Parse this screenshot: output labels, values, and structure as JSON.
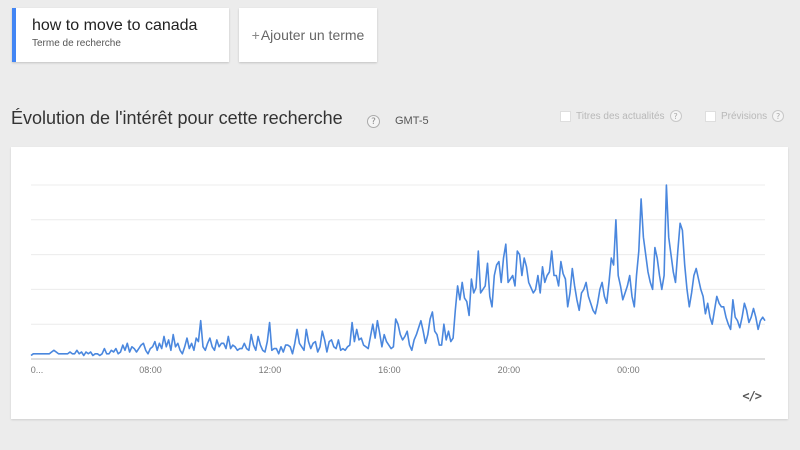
{
  "search_term": {
    "title": "how to move to canada",
    "subtitle": "Terme de recherche",
    "accent": "#4285f4"
  },
  "add_term": {
    "plus": "+",
    "label": "Ajouter un terme"
  },
  "section": {
    "title": "Évolution de l'intérêt pour cette recherche",
    "help": "?",
    "timezone": "GMT-5"
  },
  "options": {
    "news": {
      "label": "Titres des actualités",
      "help": "?"
    },
    "forecast": {
      "label": "Prévisions",
      "help": "?"
    }
  },
  "embed_label": "</>",
  "chart_data": {
    "type": "line",
    "xlabels": [
      {
        "label": "0...",
        "index": 0
      },
      {
        "label": "08:00",
        "index": 32
      },
      {
        "label": "12:00",
        "index": 64
      },
      {
        "label": "16:00",
        "index": 96
      },
      {
        "label": "20:00",
        "index": 128
      },
      {
        "label": "00:00",
        "index": 160
      }
    ],
    "ylim": [
      0,
      100
    ],
    "grid": true,
    "series": [
      {
        "color": "#4a87de",
        "values": [
          2,
          3,
          3,
          3,
          3,
          3,
          3,
          3,
          3,
          4,
          5,
          4,
          3,
          3,
          3,
          3,
          3,
          4,
          3,
          3,
          5,
          3,
          4,
          2,
          4,
          3,
          4,
          2,
          3,
          3,
          2,
          3,
          6,
          3,
          3,
          5,
          4,
          6,
          3,
          4,
          8,
          5,
          9,
          4,
          7,
          6,
          4,
          6,
          8,
          9,
          5,
          3,
          6,
          7,
          10,
          5,
          9,
          6,
          13,
          7,
          11,
          5,
          14,
          7,
          9,
          5,
          3,
          7,
          12,
          6,
          9,
          5,
          12,
          10,
          22,
          7,
          5,
          9,
          12,
          7,
          5,
          11,
          7,
          9,
          9,
          6,
          13,
          6,
          8,
          7,
          5,
          6,
          6,
          9,
          6,
          5,
          14,
          8,
          5,
          13,
          8,
          5,
          4,
          10,
          21,
          5,
          6,
          6,
          3,
          7,
          4,
          8,
          8,
          7,
          3,
          9,
          17,
          9,
          7,
          5,
          17,
          10,
          6,
          9,
          10,
          4,
          7,
          16,
          11,
          4,
          10,
          11,
          7,
          6,
          11,
          5,
          6,
          5,
          7,
          8,
          21,
          10,
          17,
          11,
          12,
          8,
          7,
          6,
          13,
          20,
          12,
          22,
          15,
          7,
          14,
          10,
          8,
          6,
          7,
          23,
          20,
          14,
          11,
          13,
          16,
          8,
          5,
          11,
          14,
          18,
          22,
          16,
          9,
          14,
          23,
          27,
          16,
          14,
          8,
          8,
          20,
          11,
          16,
          10,
          12,
          28,
          42,
          34,
          44,
          35,
          33,
          25,
          46,
          38,
          41,
          62,
          38,
          40,
          42,
          55,
          36,
          30,
          48,
          54,
          56,
          44,
          58,
          66,
          44,
          46,
          48,
          42,
          62,
          60,
          48,
          58,
          53,
          44,
          41,
          38,
          40,
          48,
          38,
          53,
          44,
          48,
          50,
          62,
          48,
          48,
          42,
          56,
          49,
          46,
          30,
          38,
          52,
          42,
          34,
          28,
          38,
          40,
          44,
          36,
          32,
          28,
          26,
          32,
          40,
          44,
          36,
          32,
          44,
          58,
          54,
          80,
          48,
          42,
          34,
          38,
          42,
          48,
          36,
          30,
          48,
          62,
          92,
          70,
          60,
          50,
          44,
          40,
          64,
          58,
          48,
          40,
          48,
          100,
          70,
          60,
          50,
          44,
          62,
          78,
          74,
          54,
          40,
          30,
          38,
          48,
          52,
          46,
          40,
          36,
          26,
          32,
          24,
          20,
          28,
          36,
          32,
          30,
          30,
          24,
          20,
          17,
          34,
          24,
          22,
          18,
          24,
          32,
          28,
          21,
          24,
          29,
          24,
          17,
          22,
          24,
          22
        ]
      }
    ]
  }
}
